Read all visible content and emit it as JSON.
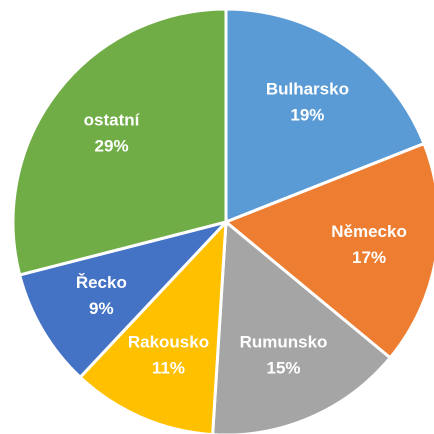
{
  "chart_data": {
    "type": "pie",
    "categories": [
      "Bulharsko",
      "Německo",
      "Rumunsko",
      "Rakousko",
      "Řecko",
      "ostatní"
    ],
    "values": [
      19,
      17,
      15,
      11,
      9,
      29
    ],
    "value_labels": [
      "19%",
      "17%",
      "15%",
      "11%",
      "9%",
      "29%"
    ],
    "colors": [
      "#5b9bd5",
      "#ed7d31",
      "#a5a5a5",
      "#ffc000",
      "#4472c4",
      "#70ad47"
    ]
  }
}
